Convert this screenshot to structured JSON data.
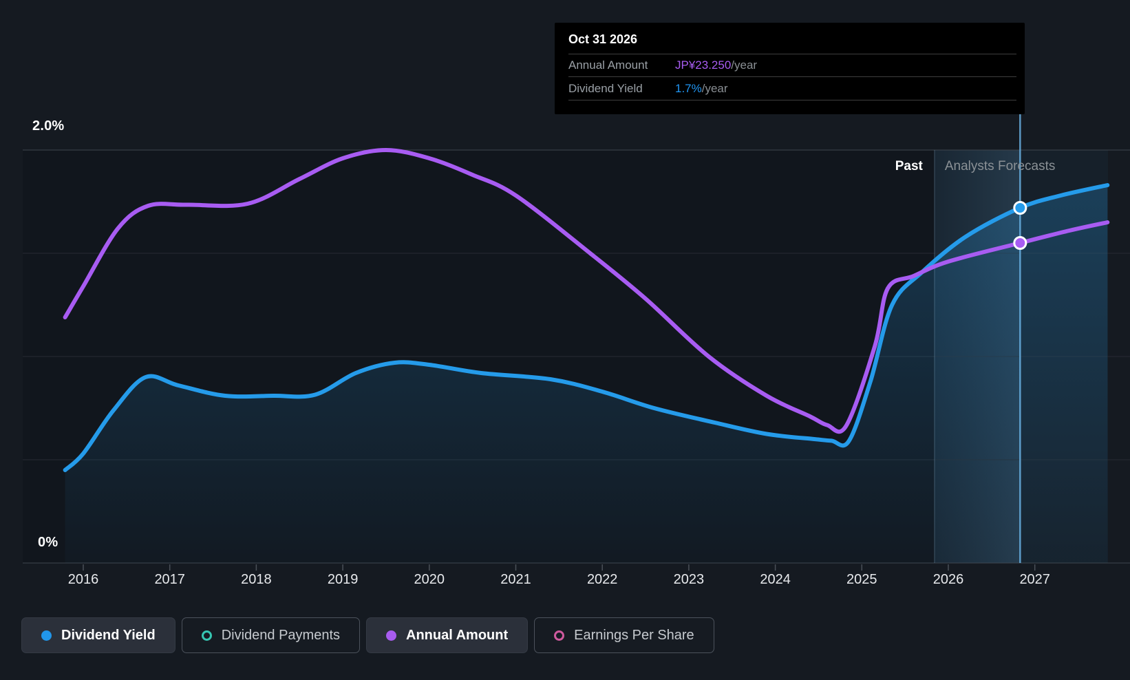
{
  "colors": {
    "background": "#151a21",
    "plot_background": "#11161d",
    "dividend_yield": "#259bea",
    "annual_amount": "#a85cf2",
    "dividend_payments": "#36c6b2",
    "earnings_per_share": "#cf5a9e",
    "gridline_major": "#3f464e",
    "gridline_minor": "#262b32",
    "axis_tick": "#4a5058",
    "forecast_tint": "rgba(86,156,204,0.08)",
    "highlight_line": "rgba(105,175,225,0.85)"
  },
  "tooltip": {
    "title": "Oct 31 2026",
    "rows": [
      {
        "label": "Annual Amount",
        "value": "JP¥23.250",
        "unit": "/year",
        "color": "#a85cf2"
      },
      {
        "label": "Dividend Yield",
        "value": "1.7%",
        "unit": "/year",
        "color": "#2196f3"
      }
    ]
  },
  "annotations": {
    "past": "Past",
    "forecast": "Analysts Forecasts"
  },
  "legend": [
    {
      "label": "Dividend Yield",
      "color": "#2196ea",
      "marker": "filled",
      "active": true
    },
    {
      "label": "Dividend Payments",
      "color": "#36c6b2",
      "marker": "open",
      "active": false
    },
    {
      "label": "Annual Amount",
      "color": "#a85cf0",
      "marker": "filled",
      "active": true
    },
    {
      "label": "Earnings Per Share",
      "color": "#cf5a9e",
      "marker": "open",
      "active": false
    }
  ],
  "chart_data": {
    "type": "line",
    "y_axis": {
      "unit": "%",
      "range": [
        0,
        2.0
      ],
      "gridline_step": 0.5,
      "ticks": [
        {
          "value": 2.0,
          "label": "2.0%"
        },
        {
          "value": 0,
          "label": "0%"
        }
      ]
    },
    "x_axis": {
      "range": [
        2015.79,
        2027.845
      ],
      "ticks": [
        "2016",
        "2017",
        "2018",
        "2019",
        "2020",
        "2021",
        "2022",
        "2023",
        "2024",
        "2025",
        "2026",
        "2027"
      ]
    },
    "divider": {
      "x": 2025.84,
      "past_label": "Past",
      "forecast_label": "Analysts Forecasts"
    },
    "highlight": {
      "x": 2026.83,
      "date": "Oct 31 2026",
      "dividend_yield": "1.7%/year",
      "annual_amount": "JP¥23.250/year"
    },
    "legend_position": "bottom",
    "grid": true,
    "series": [
      {
        "name": "Dividend Yield",
        "color": "#259bea",
        "area": true,
        "visible": true,
        "marker_at": 2026.83,
        "points": [
          [
            2015.79,
            0.45
          ],
          [
            2016.0,
            0.53
          ],
          [
            2016.35,
            0.74
          ],
          [
            2016.72,
            0.9
          ],
          [
            2017.1,
            0.86
          ],
          [
            2017.64,
            0.81
          ],
          [
            2018.2,
            0.81
          ],
          [
            2018.68,
            0.815
          ],
          [
            2019.15,
            0.92
          ],
          [
            2019.6,
            0.97
          ],
          [
            2020.0,
            0.96
          ],
          [
            2020.6,
            0.92
          ],
          [
            2021.4,
            0.89
          ],
          [
            2022.0,
            0.83
          ],
          [
            2022.6,
            0.75
          ],
          [
            2023.3,
            0.68
          ],
          [
            2023.9,
            0.625
          ],
          [
            2024.45,
            0.6
          ],
          [
            2024.65,
            0.592
          ],
          [
            2024.85,
            0.59
          ],
          [
            2025.1,
            0.88
          ],
          [
            2025.35,
            1.25
          ],
          [
            2025.7,
            1.41
          ],
          [
            2026.2,
            1.58
          ],
          [
            2026.83,
            1.72
          ],
          [
            2027.3,
            1.78
          ],
          [
            2027.84,
            1.83
          ]
        ]
      },
      {
        "name": "Annual Amount",
        "color": "#a85cf2",
        "area": false,
        "visible": true,
        "marker_at": 2026.83,
        "points": [
          [
            2015.79,
            1.19
          ],
          [
            2016.0,
            1.34
          ],
          [
            2016.4,
            1.62
          ],
          [
            2016.75,
            1.73
          ],
          [
            2017.2,
            1.735
          ],
          [
            2017.9,
            1.74
          ],
          [
            2018.5,
            1.86
          ],
          [
            2019.0,
            1.96
          ],
          [
            2019.5,
            2.0
          ],
          [
            2020.0,
            1.96
          ],
          [
            2020.5,
            1.88
          ],
          [
            2021.0,
            1.78
          ],
          [
            2021.86,
            1.5
          ],
          [
            2022.5,
            1.28
          ],
          [
            2023.23,
            1.0
          ],
          [
            2023.9,
            0.81
          ],
          [
            2024.4,
            0.71
          ],
          [
            2024.6,
            0.668
          ],
          [
            2024.82,
            0.665
          ],
          [
            2025.15,
            1.05
          ],
          [
            2025.3,
            1.33
          ],
          [
            2025.6,
            1.39
          ],
          [
            2026.0,
            1.46
          ],
          [
            2026.83,
            1.55
          ],
          [
            2027.4,
            1.61
          ],
          [
            2027.84,
            1.65
          ]
        ]
      },
      {
        "name": "Dividend Payments",
        "color": "#36c6b2",
        "area": false,
        "visible": false,
        "points": []
      },
      {
        "name": "Earnings Per Share",
        "color": "#cf5a9e",
        "area": false,
        "visible": false,
        "points": []
      }
    ]
  }
}
